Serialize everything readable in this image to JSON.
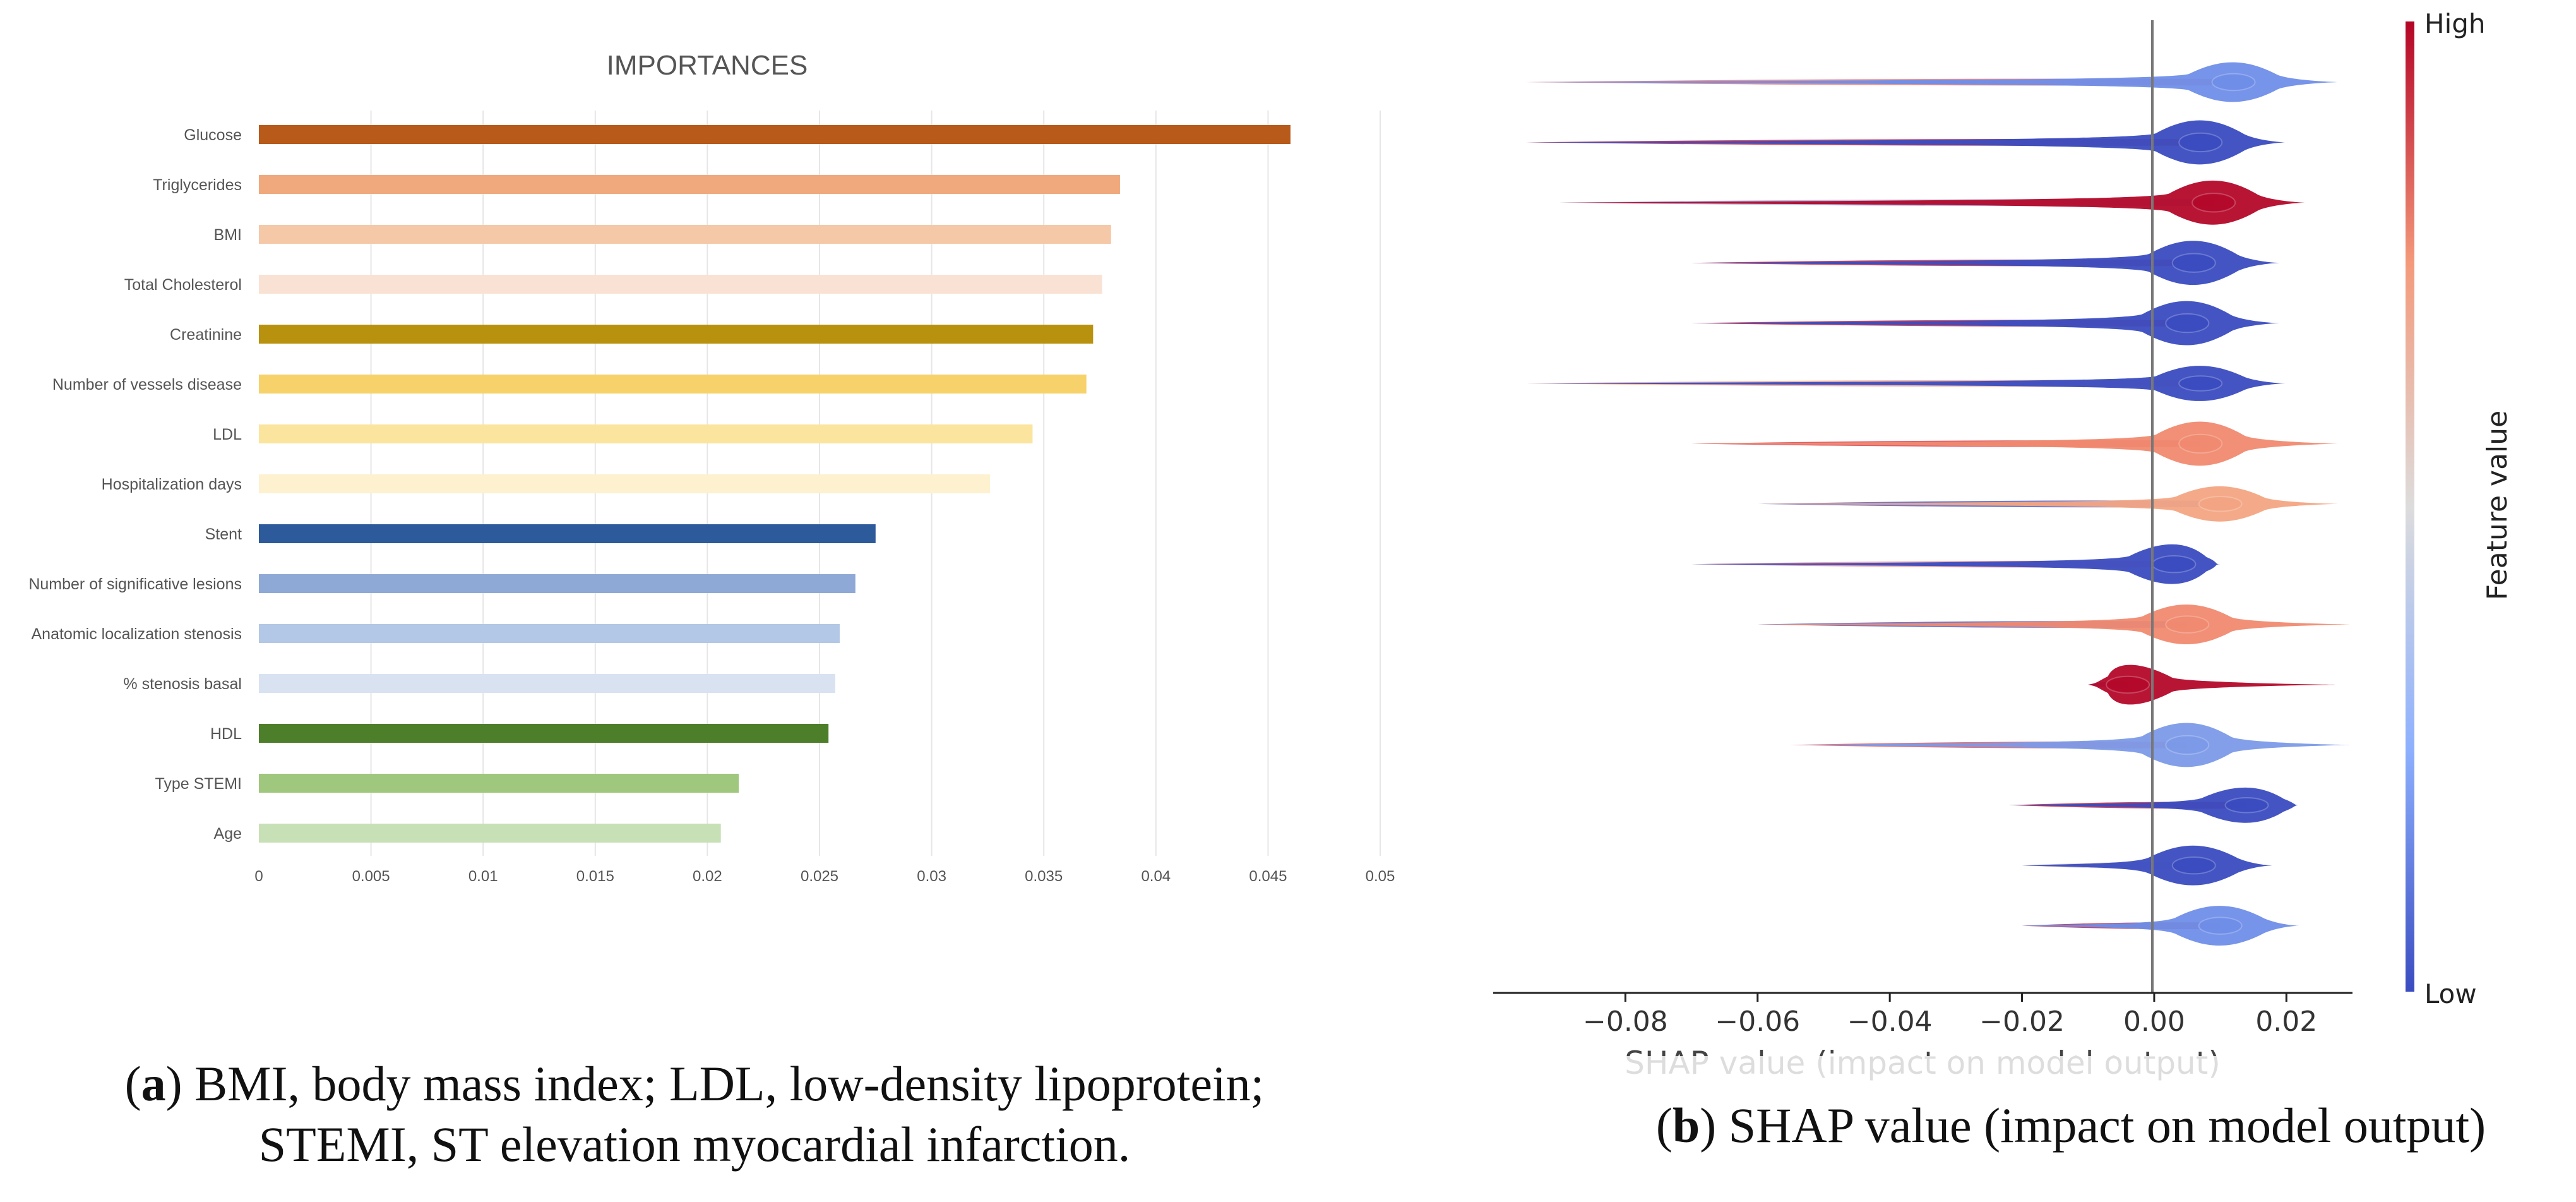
{
  "chart_data": [
    {
      "type": "bar",
      "orientation": "horizontal",
      "title": "IMPORTANCES",
      "categories": [
        "Glucose",
        "Triglycerides",
        "BMI",
        "Total Cholesterol",
        "Creatinine",
        "Number of vessels disease",
        "LDL",
        "Hospitalization days",
        "Stent",
        "Number of significative lesions",
        "Anatomic localization stenosis",
        "% stenosis basal",
        "HDL",
        "Type STEMI",
        "Age"
      ],
      "values": [
        0.046,
        0.0384,
        0.038,
        0.0376,
        0.0372,
        0.0369,
        0.0345,
        0.0326,
        0.0275,
        0.0266,
        0.0259,
        0.0257,
        0.0254,
        0.0214,
        0.0206
      ],
      "colors": [
        "#b85a1a",
        "#f0a97c",
        "#f5c8a8",
        "#f9e2d4",
        "#b8920e",
        "#f7d16a",
        "#fbe59e",
        "#fdf1cf",
        "#2d5a9a",
        "#8fa9d6",
        "#b3c7e6",
        "#d8e2f1",
        "#4d7f2a",
        "#9fc77e",
        "#c8e0b6"
      ],
      "xlim": [
        0,
        0.05
      ],
      "xticks": [
        "0",
        "0.005",
        "0.01",
        "0.015",
        "0.02",
        "0.025",
        "0.03",
        "0.035",
        "0.04",
        "0.045",
        "0.05"
      ],
      "xtick_values": [
        0,
        0.005,
        0.01,
        0.015,
        0.02,
        0.025,
        0.03,
        0.035,
        0.04,
        0.045,
        0.05
      ],
      "grid": true,
      "caption_label": "a",
      "caption_text": ") BMI, body mass index; LDL, low-density lipoprotein; ",
      "caption_line2": "STEMI, ST elevation myocardial infarction."
    },
    {
      "type": "violin",
      "title": "",
      "xlabel": "SHAP value (impact on model output)",
      "xlim": [
        -0.1,
        0.03
      ],
      "xticks": [
        "−0.08",
        "−0.06",
        "−0.04",
        "−0.02",
        "0.00",
        "0.02"
      ],
      "xtick_values": [
        -0.08,
        -0.06,
        -0.04,
        -0.02,
        0,
        0.02
      ],
      "colorbar": {
        "label": "Feature value",
        "high": "High",
        "low": "Low",
        "high_color": "#b4082a",
        "low_color": "#3a4cc0"
      },
      "rows": [
        {
          "main": 0.012,
          "left_tail": -0.095,
          "right_tail": 0.028,
          "main_color": "#6f8ee8",
          "tail_color": "#e06c6c",
          "peak": 0.9
        },
        {
          "main": 0.007,
          "left_tail": -0.095,
          "right_tail": 0.02,
          "main_color": "#3a4cc0",
          "tail_color": "#c0102c",
          "peak": 1.0
        },
        {
          "main": 0.009,
          "left_tail": -0.09,
          "right_tail": 0.023,
          "main_color": "#b4082a",
          "tail_color": "#9aa8e0",
          "peak": 1.0
        },
        {
          "main": 0.006,
          "left_tail": -0.07,
          "right_tail": 0.019,
          "main_color": "#3a4cc0",
          "tail_color": "#c0102c",
          "peak": 1.0
        },
        {
          "main": 0.005,
          "left_tail": -0.07,
          "right_tail": 0.019,
          "main_color": "#3a4cc0",
          "tail_color": "#c0102c",
          "peak": 1.0
        },
        {
          "main": 0.007,
          "left_tail": -0.095,
          "right_tail": 0.02,
          "main_color": "#3a4cc0",
          "tail_color": "#f0a08a",
          "peak": 0.8
        },
        {
          "main": 0.007,
          "left_tail": -0.07,
          "right_tail": 0.028,
          "main_color": "#f08a70",
          "tail_color": "#d02838",
          "peak": 1.0
        },
        {
          "main": 0.01,
          "left_tail": -0.06,
          "right_tail": 0.028,
          "main_color": "#f3a583",
          "tail_color": "#3a4cc0",
          "peak": 0.8
        },
        {
          "main": 0.003,
          "left_tail": -0.07,
          "right_tail": 0.01,
          "main_color": "#3a4cc0",
          "tail_color": "#f08a8a",
          "peak": 0.9
        },
        {
          "main": 0.005,
          "left_tail": -0.06,
          "right_tail": 0.03,
          "main_color": "#f08a70",
          "tail_color": "#3a4cc0",
          "peak": 0.9
        },
        {
          "main": -0.004,
          "left_tail": -0.01,
          "right_tail": 0.028,
          "main_color": "#b4082a",
          "tail_color": "#3a4cc0",
          "peak": 0.9
        },
        {
          "main": 0.005,
          "left_tail": -0.055,
          "right_tail": 0.03,
          "main_color": "#7c9ae8",
          "tail_color": "#e44040",
          "peak": 1.0
        },
        {
          "main": 0.014,
          "left_tail": -0.022,
          "right_tail": 0.022,
          "main_color": "#3a4cc0",
          "tail_color": "#b4082a",
          "peak": 0.8
        },
        {
          "main": 0.006,
          "left_tail": -0.02,
          "right_tail": 0.018,
          "main_color": "#3a4cc0",
          "tail_color": "#dcc8c8",
          "peak": 0.9
        },
        {
          "main": 0.01,
          "left_tail": -0.02,
          "right_tail": 0.022,
          "main_color": "#6f8ee8",
          "tail_color": "#b4082a",
          "peak": 0.9
        }
      ],
      "caption_label": "b",
      "caption_text": ") SHAP value (impact on model output)"
    }
  ]
}
